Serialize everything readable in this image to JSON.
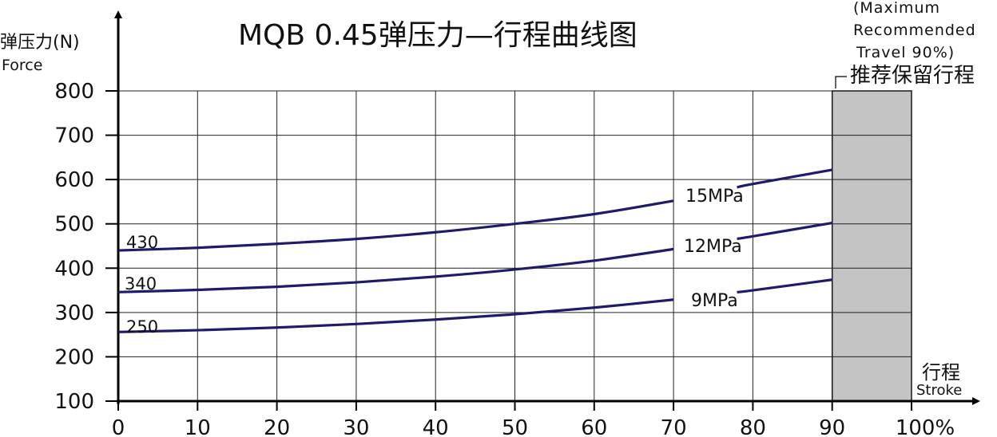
{
  "chart_data": {
    "type": "line",
    "title": "MQB 0.45弹压力—行程曲线图",
    "ylabel": "弹压力(N)",
    "ylabel_en": "Force",
    "xlabel": "行程",
    "xlabel_en": "Stroke",
    "ylim": [
      100,
      800
    ],
    "xlim": [
      0,
      100
    ],
    "yticks": [
      100,
      200,
      300,
      400,
      500,
      600,
      700,
      800
    ],
    "xticks": [
      0,
      10,
      20,
      30,
      40,
      50,
      60,
      70,
      80,
      90,
      100
    ],
    "xtick_labels": [
      "0",
      "10",
      "20",
      "30",
      "40",
      "50",
      "60",
      "70",
      "80",
      "90",
      "100%"
    ],
    "grid": true,
    "series": [
      {
        "name": "15MPa",
        "start_label": "430",
        "x": [
          0,
          10,
          20,
          30,
          40,
          50,
          60,
          70,
          80,
          90
        ],
        "values": [
          440,
          446,
          455,
          466,
          481,
          500,
          522,
          552,
          590,
          622
        ]
      },
      {
        "name": "12MPa",
        "start_label": "340",
        "x": [
          0,
          10,
          20,
          30,
          40,
          50,
          60,
          70,
          80,
          90
        ],
        "values": [
          346,
          351,
          358,
          368,
          381,
          397,
          417,
          443,
          472,
          502
        ]
      },
      {
        "name": "9MPa",
        "start_label": "250",
        "x": [
          0,
          10,
          20,
          30,
          40,
          50,
          60,
          70,
          80,
          90
        ],
        "values": [
          256,
          260,
          266,
          274,
          284,
          296,
          311,
          329,
          350,
          374
        ]
      }
    ],
    "reserved_region": {
      "x_range": [
        90,
        100
      ],
      "label": "推荐保留行程",
      "note_lines": [
        "(Maximum",
        "Recommended",
        "Travel 90%)"
      ],
      "color": "#c4c4c4"
    },
    "line_color": "#1f1a6b"
  }
}
